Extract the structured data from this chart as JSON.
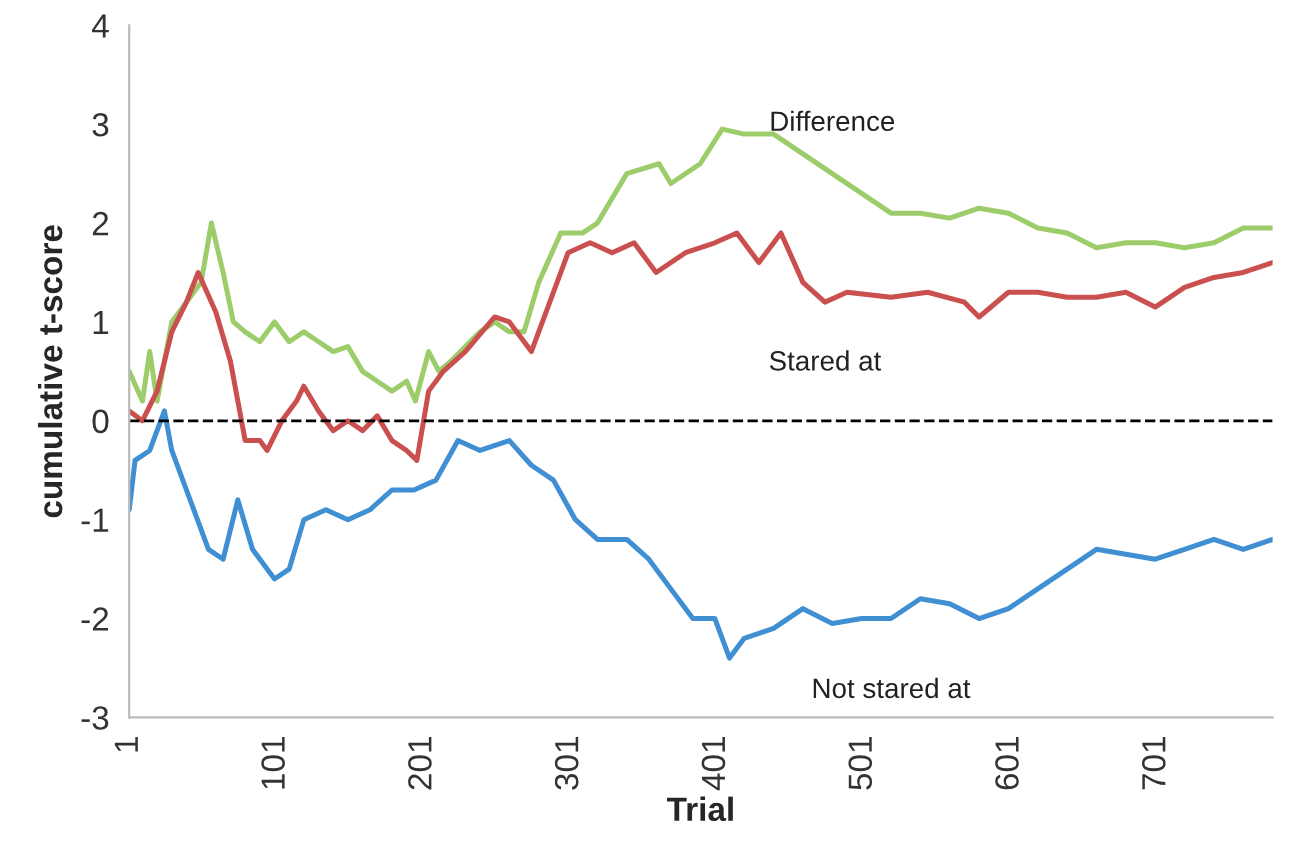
{
  "chart_data": {
    "type": "line",
    "xlabel": "Trial",
    "ylabel": "cumulative t-score",
    "xlim": [
      1,
      780
    ],
    "xticks": [
      1,
      101,
      201,
      301,
      401,
      501,
      601,
      701
    ],
    "ylim": [
      -3,
      4
    ],
    "yticks": [
      -3,
      -2,
      -1,
      0,
      1,
      2,
      3,
      4
    ],
    "grid": false,
    "legend": false,
    "marker": "none",
    "line_style": "solid",
    "ref_lines": [
      {
        "axis": "y",
        "value": 0,
        "color": "#000000",
        "line_style": "dashed"
      }
    ],
    "series": [
      {
        "name": "Difference",
        "color": "#9dcc6a",
        "x": [
          1,
          10,
          15,
          20,
          30,
          40,
          50,
          57,
          65,
          72,
          80,
          90,
          100,
          110,
          120,
          130,
          140,
          150,
          160,
          170,
          180,
          190,
          196,
          205,
          212,
          220,
          240,
          250,
          260,
          270,
          280,
          295,
          310,
          320,
          340,
          362,
          370,
          390,
          405,
          420,
          440,
          460,
          480,
          500,
          520,
          540,
          560,
          580,
          600,
          620,
          640,
          660,
          680,
          700,
          720,
          740,
          760,
          780
        ],
        "values": [
          0.5,
          0.2,
          0.7,
          0.2,
          1.0,
          1.2,
          1.4,
          2.0,
          1.5,
          1.0,
          0.9,
          0.8,
          1.0,
          0.8,
          0.9,
          0.8,
          0.7,
          0.75,
          0.5,
          0.4,
          0.3,
          0.4,
          0.2,
          0.7,
          0.5,
          0.6,
          0.9,
          1.0,
          0.9,
          0.9,
          1.4,
          1.9,
          1.9,
          2.0,
          2.5,
          2.6,
          2.4,
          2.6,
          2.95,
          2.9,
          2.9,
          2.7,
          2.5,
          2.3,
          2.1,
          2.1,
          2.05,
          2.15,
          2.1,
          1.95,
          1.9,
          1.75,
          1.8,
          1.8,
          1.75,
          1.8,
          1.95,
          1.95
        ]
      },
      {
        "name": "Stared at",
        "color": "#c9504f",
        "x": [
          1,
          10,
          20,
          30,
          40,
          48,
          60,
          70,
          80,
          90,
          95,
          105,
          115,
          120,
          130,
          140,
          150,
          160,
          170,
          180,
          190,
          197,
          205,
          215,
          230,
          250,
          260,
          275,
          290,
          300,
          315,
          330,
          345,
          360,
          380,
          400,
          415,
          430,
          445,
          460,
          475,
          490,
          520,
          545,
          570,
          580,
          600,
          620,
          640,
          660,
          680,
          700,
          720,
          740,
          760,
          780
        ],
        "values": [
          0.1,
          0.0,
          0.3,
          0.9,
          1.2,
          1.5,
          1.1,
          0.6,
          -0.2,
          -0.2,
          -0.3,
          0.0,
          0.2,
          0.35,
          0.1,
          -0.1,
          0.0,
          -0.1,
          0.05,
          -0.2,
          -0.3,
          -0.4,
          0.3,
          0.5,
          0.7,
          1.05,
          1.0,
          0.7,
          1.3,
          1.7,
          1.8,
          1.7,
          1.8,
          1.5,
          1.7,
          1.8,
          1.9,
          1.6,
          1.9,
          1.4,
          1.2,
          1.3,
          1.25,
          1.3,
          1.2,
          1.05,
          1.3,
          1.3,
          1.25,
          1.25,
          1.3,
          1.15,
          1.35,
          1.45,
          1.5,
          1.6
        ]
      },
      {
        "name": "Not stared at",
        "color": "#3f8fd2",
        "x": [
          1,
          5,
          15,
          25,
          30,
          40,
          55,
          65,
          75,
          85,
          100,
          110,
          120,
          135,
          150,
          165,
          180,
          195,
          210,
          225,
          240,
          260,
          275,
          290,
          305,
          320,
          340,
          355,
          370,
          385,
          400,
          410,
          420,
          440,
          460,
          480,
          500,
          520,
          540,
          560,
          580,
          600,
          620,
          640,
          660,
          680,
          700,
          720,
          740,
          760,
          780
        ],
        "values": [
          -0.9,
          -0.4,
          -0.3,
          0.1,
          -0.3,
          -0.7,
          -1.3,
          -1.4,
          -0.8,
          -1.3,
          -1.6,
          -1.5,
          -1.0,
          -0.9,
          -1.0,
          -0.9,
          -0.7,
          -0.7,
          -0.6,
          -0.2,
          -0.3,
          -0.2,
          -0.45,
          -0.6,
          -1.0,
          -1.2,
          -1.2,
          -1.4,
          -1.7,
          -2.0,
          -2.0,
          -2.4,
          -2.2,
          -2.1,
          -1.9,
          -2.05,
          -2.0,
          -2.0,
          -1.8,
          -1.85,
          -2.0,
          -1.9,
          -1.7,
          -1.5,
          -1.3,
          -1.35,
          -1.4,
          -1.3,
          -1.2,
          -1.3,
          -1.2
        ]
      }
    ]
  }
}
